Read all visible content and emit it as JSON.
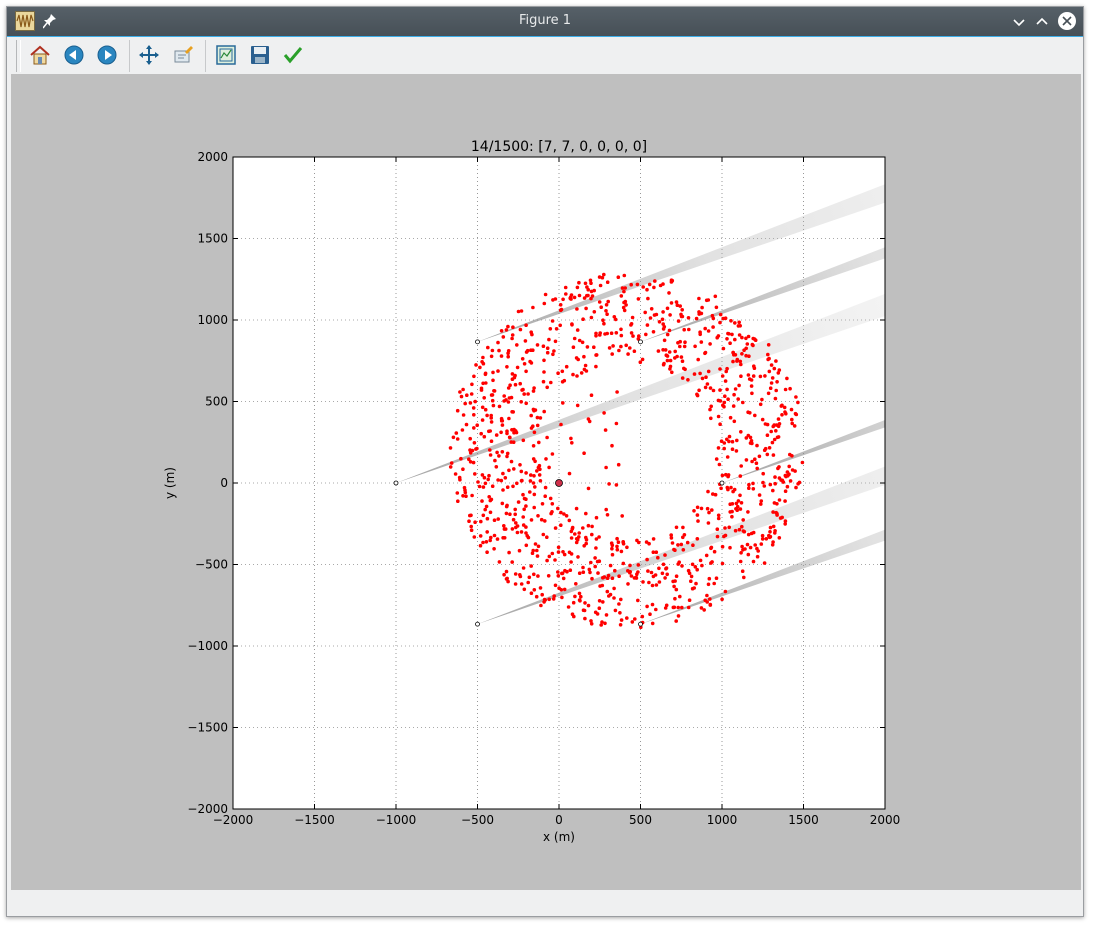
{
  "window": {
    "title": "Figure 1"
  },
  "toolbar": {
    "items": [
      {
        "name": "home-icon",
        "tip": "home"
      },
      {
        "name": "back-icon",
        "tip": "back"
      },
      {
        "name": "forward-icon",
        "tip": "forward"
      },
      {
        "name": "pan-icon",
        "tip": "pan"
      },
      {
        "name": "zoom-icon",
        "tip": "zoom"
      },
      {
        "name": "subplots-icon",
        "tip": "subplots"
      },
      {
        "name": "save-icon",
        "tip": "save"
      },
      {
        "name": "edit-axis-icon",
        "tip": "customize"
      }
    ]
  },
  "colors": {
    "points": "#ff0000",
    "trail": "#888888",
    "grid": "#555555"
  },
  "chart_data": {
    "type": "scatter",
    "title": "14/1500: [7, 7, 0, 0, 0, 0]",
    "xlabel": "x (m)",
    "ylabel": "y (m)",
    "xlim": [
      -2000,
      2000
    ],
    "ylim": [
      -2000,
      2000
    ],
    "xticks": [
      "−2000",
      "−1500",
      "−1000",
      "−500",
      "0",
      "500",
      "1000",
      "1500",
      "2000"
    ],
    "yticks": [
      "−2000",
      "−1500",
      "−1000",
      "−500",
      "0",
      "500",
      "1000",
      "1500",
      "2000"
    ],
    "grid": true,
    "anchors": [
      {
        "x": -1000,
        "y": 0
      },
      {
        "x": -500,
        "y": 866
      },
      {
        "x": -500,
        "y": -866
      },
      {
        "x": 500,
        "y": 866
      },
      {
        "x": 500,
        "y": -866
      },
      {
        "x": 1000,
        "y": 0
      },
      {
        "x": 0,
        "y": 0
      }
    ],
    "plume_direction_deg": 20,
    "cloud": {
      "center_x": 420,
      "center_y": 200,
      "radius_x": 1090,
      "radius_y": 1090,
      "inner_radius_fraction": 0.5,
      "num_points": 1100
    }
  }
}
